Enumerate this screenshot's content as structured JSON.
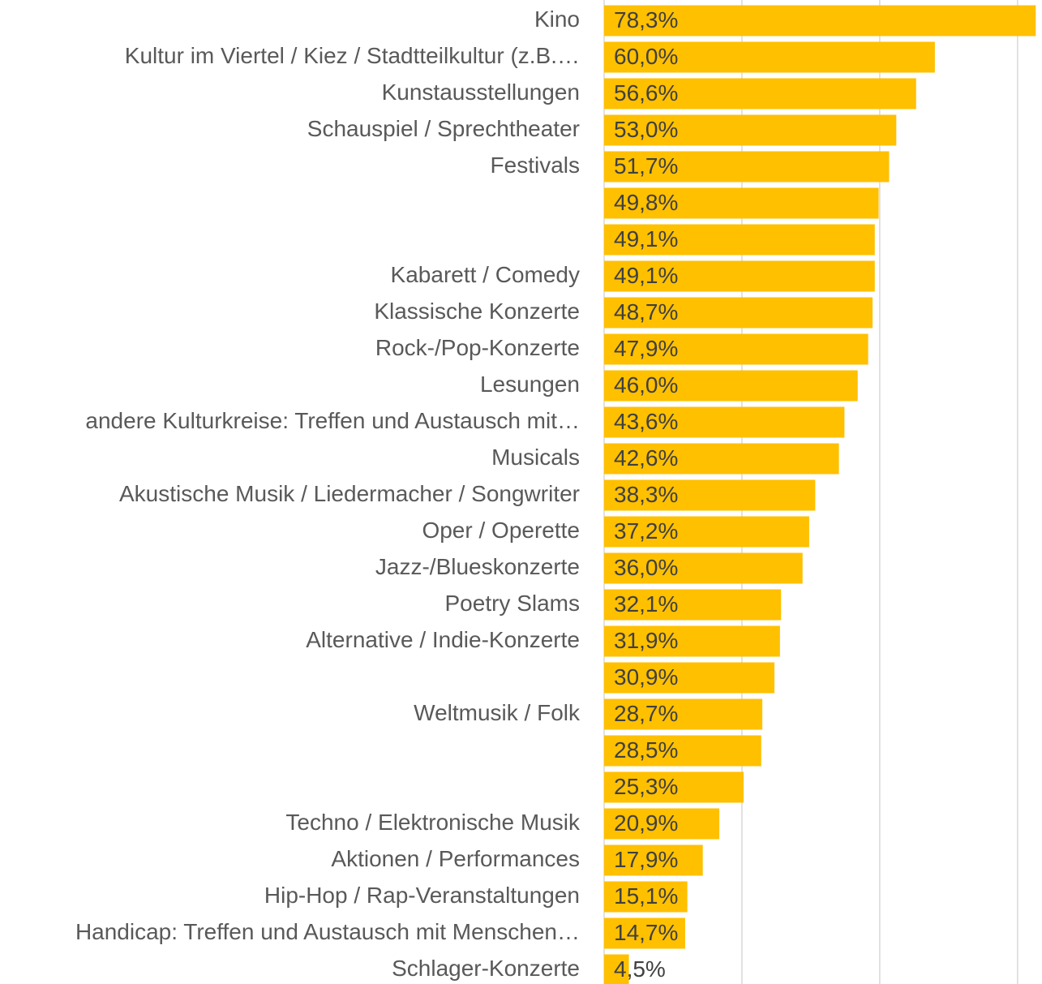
{
  "chart_data": {
    "type": "bar",
    "orientation": "horizontal",
    "categories": [
      "Kino",
      "Kultur im Viertel / Kiez / Stadtteilkultur (z.B.…",
      "Kunstausstellungen",
      "Schauspiel / Sprechtheater",
      "Festivals",
      null,
      null,
      "Kabarett / Comedy",
      "Klassische Konzerte",
      "Rock-/Pop-Konzerte",
      "Lesungen",
      "andere Kulturkreise: Treffen und Austausch mit…",
      "Musicals",
      "Akustische Musik / Liedermacher / Songwriter",
      "Oper / Operette",
      "Jazz-/Blueskonzerte",
      "Poetry Slams",
      "Alternative / Indie-Konzerte",
      null,
      "Weltmusik / Folk",
      null,
      null,
      "Techno / Elektronische Musik",
      "Aktionen / Performances",
      "Hip-Hop / Rap-Veranstaltungen",
      "Handicap: Treffen und Austausch mit Menschen…",
      "Schlager-Konzerte"
    ],
    "values": [
      78.3,
      60.0,
      56.6,
      53.0,
      51.7,
      49.8,
      49.1,
      49.1,
      48.7,
      47.9,
      46.0,
      43.6,
      42.6,
      38.3,
      37.2,
      36.0,
      32.1,
      31.9,
      30.9,
      28.7,
      28.5,
      25.3,
      20.9,
      17.9,
      15.1,
      14.7,
      4.5
    ],
    "value_labels": [
      "78,3%",
      "60,0%",
      "56,6%",
      "53,0%",
      "51,7%",
      "49,8%",
      "49,1%",
      "49,1%",
      "48,7%",
      "47,9%",
      "46,0%",
      "43,6%",
      "42,6%",
      "38,3%",
      "37,2%",
      "36,0%",
      "32,1%",
      "31,9%",
      "30,9%",
      "28,7%",
      "28,5%",
      "25,3%",
      "20,9%",
      "17,9%",
      "15,1%",
      "14,7%",
      "4,5%"
    ],
    "color": "#ffc000",
    "xlim": [
      0,
      78.7
    ],
    "xticks": [
      0,
      25,
      50,
      75
    ],
    "grid": true
  }
}
